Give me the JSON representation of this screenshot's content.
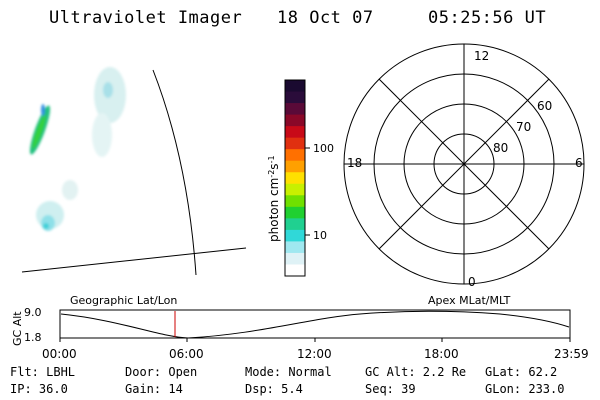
{
  "header": {
    "instrument": "Ultraviolet Imager",
    "date": "18 Oct 07",
    "time": "05:25:56 UT"
  },
  "colorbar": {
    "unit": "photon cm",
    "unit_exp1": "-2",
    "unit_s": "s",
    "unit_exp2": "-1",
    "ticks": [
      "100",
      "10"
    ],
    "colors": [
      "#1a0a30",
      "#2a0c3a",
      "#5a0a38",
      "#8a0828",
      "#c80a18",
      "#e03010",
      "#ff7000",
      "#ffa000",
      "#ffe000",
      "#c8f000",
      "#70e000",
      "#20d030",
      "#20d090",
      "#30d8d8",
      "#a0e8f0",
      "#dff2f6",
      "#ffffff"
    ]
  },
  "polar_plot": {
    "mlt_labels": [
      "12",
      "18",
      "6",
      "0"
    ],
    "lat_labels": [
      "60",
      "70",
      "80"
    ]
  },
  "gc_alt_plot": {
    "title_left": "Geographic Lat/Lon",
    "title_right": "Apex MLat/MLT",
    "ylabel": "GC Alt",
    "ytick_top": "9.0",
    "ytick_bottom": "1.8",
    "xticks": [
      "00:00",
      "06:00",
      "12:00",
      "18:00",
      "23:59"
    ],
    "marker_color": "#cc0000"
  },
  "info": {
    "filter": "Flt: LBHL",
    "door": "Door: Open",
    "mode": "Mode: Normal",
    "gc_alt": "GC Alt: 2.2 Re",
    "glat": "GLat:  62.2",
    "ip": "IP: 36.0",
    "gain": "Gain: 14",
    "dsp": "Dsp:    5.4",
    "seq": "Seq: 39",
    "glon": "GLon: 233.0"
  }
}
